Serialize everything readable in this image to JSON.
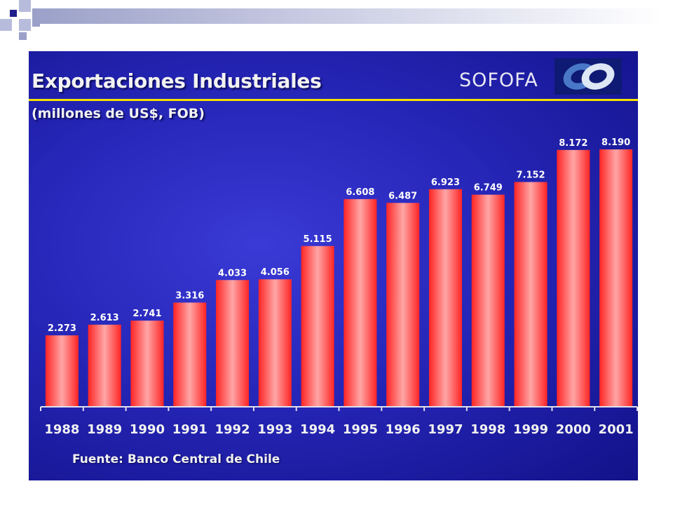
{
  "colors": {
    "bar": "#ff3b3b",
    "background": "#2a2abf",
    "rule": "#f4e200",
    "text": "#f2f2f2"
  },
  "slide": {
    "brand": "SOFOFA",
    "source": "Fuente: Banco Central de Chile"
  },
  "chart_data": {
    "type": "bar",
    "title": "Exportaciones Industriales",
    "subtitle": "(millones de US$, FOB)",
    "categories": [
      "1988",
      "1989",
      "1990",
      "1991",
      "1992",
      "1993",
      "1994",
      "1995",
      "1996",
      "1997",
      "1998",
      "1999",
      "2000",
      "2001"
    ],
    "values": [
      2273,
      2613,
      2741,
      3316,
      4033,
      4056,
      5115,
      6608,
      6487,
      6923,
      6749,
      7152,
      8172,
      8190
    ],
    "value_labels": [
      "2.273",
      "2.613",
      "2.741",
      "3.316",
      "4.033",
      "4.056",
      "5.115",
      "6.608",
      "6.487",
      "6.923",
      "6.749",
      "7.152",
      "8.172",
      "8.190"
    ],
    "xlabel": "",
    "ylabel": "",
    "ylim": [
      0,
      8190
    ],
    "grid": false,
    "legend": "none"
  }
}
